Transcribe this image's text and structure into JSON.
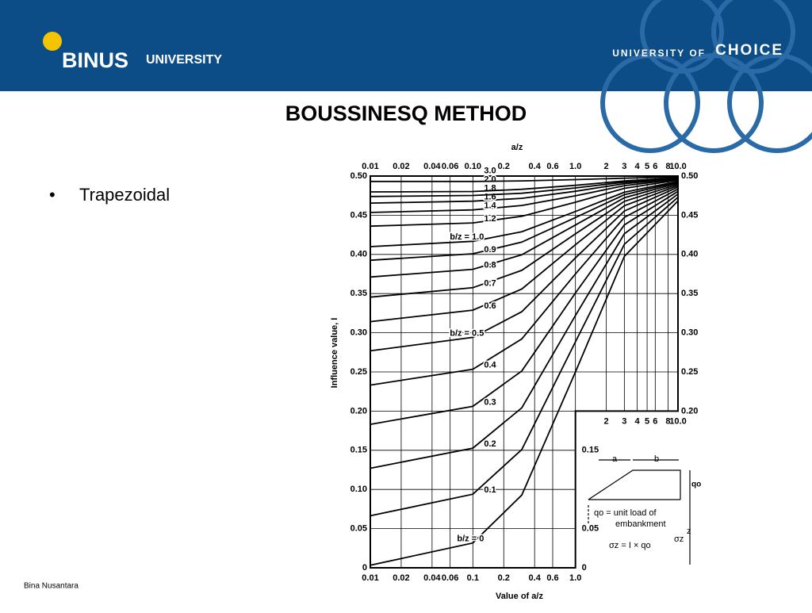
{
  "header": {
    "logo_name": "BINUS",
    "logo_suffix": "UNIVERSITY",
    "tagline_prefix": "UNIVERSITY OF",
    "tagline": "CHOICE"
  },
  "title": "BOUSSINESQ METHOD",
  "bullets": [
    "Trapezoidal"
  ],
  "footer": "Bina Nusantara",
  "inset": {
    "a": "a",
    "b": "b",
    "q": "qo",
    "load_line1": "qo = unit load of",
    "load_line2": "embankment",
    "formula": "σz = I × qo",
    "z": "z",
    "sigma": "σz"
  },
  "chart_data": {
    "type": "line",
    "x_top_label": "a/z",
    "xlabel": "Value of a/z",
    "ylabel": "Influence value, I",
    "xscale": "log",
    "xlim": [
      0.01,
      10
    ],
    "ylim": [
      0,
      0.5
    ],
    "line_color": "#000000",
    "grid": true,
    "xticks": [
      0.01,
      0.02,
      0.04,
      0.06,
      {
        "value": 0.1,
        "label": "0.10"
      },
      0.2,
      0.4,
      0.6,
      {
        "value": 1,
        "label": "1.0"
      },
      2,
      3,
      4,
      5,
      6,
      8,
      {
        "value": 10,
        "label": "10.0"
      }
    ],
    "xticks_bottom": [
      0.01,
      0.02,
      0.04,
      0.06,
      0.1,
      0.2,
      0.4,
      0.6,
      {
        "value": 1,
        "label": "1.0"
      }
    ],
    "xticks_inner": [
      2,
      3,
      4,
      5,
      6,
      8,
      {
        "value": 10,
        "label": "10.0"
      }
    ],
    "yticks": [
      0,
      0.05,
      {
        "value": 0.1,
        "label": "0.10"
      },
      0.15,
      {
        "value": 0.2,
        "label": "0.20"
      },
      0.25,
      {
        "value": 0.3,
        "label": "0.30"
      },
      0.35,
      {
        "value": 0.4,
        "label": "0.40"
      },
      0.45,
      {
        "value": 0.5,
        "label": "0.50"
      }
    ],
    "yticks_right": [
      {
        "value": 0.2,
        "label": "0.20"
      },
      0.25,
      {
        "value": 0.3,
        "label": "0.30"
      },
      0.35,
      {
        "value": 0.4,
        "label": "0.40"
      },
      0.45,
      {
        "value": 0.5,
        "label": "0.50"
      }
    ],
    "yticks_right_lower": [
      0.15,
      0.05,
      0
    ],
    "x": [
      0.01,
      0.1,
      0.3,
      1,
      3,
      10
    ],
    "series": [
      {
        "name": "b/z = 0",
        "values": [
          0.0032,
          0.0317,
          0.0928,
          0.25,
          0.3976,
          0.4683
        ]
      },
      {
        "name": "0.1",
        "values": [
          0.0664,
          0.0939,
          0.1509,
          0.2885,
          0.413,
          0.473
        ]
      },
      {
        "name": "0.2",
        "values": [
          0.127,
          0.1527,
          0.2041,
          0.3221,
          0.4263,
          0.477
        ]
      },
      {
        "name": "0.3",
        "values": [
          0.1831,
          0.2061,
          0.2512,
          0.3508,
          0.4377,
          0.4805
        ]
      },
      {
        "name": "0.4",
        "values": [
          0.2332,
          0.2534,
          0.2921,
          0.3751,
          0.4473,
          0.4834
        ]
      },
      {
        "name": "b/z = 0.5",
        "values": [
          0.2769,
          0.2941,
          0.3268,
          0.3955,
          0.4554,
          0.4859
        ]
      },
      {
        "name": "0.6",
        "values": [
          0.3142,
          0.3288,
          0.3558,
          0.4123,
          0.4621,
          0.4879
        ]
      },
      {
        "name": "0.7",
        "values": [
          0.3454,
          0.3575,
          0.3797,
          0.4262,
          0.4677,
          0.4896
        ]
      },
      {
        "name": "0.8",
        "values": [
          0.3712,
          0.381,
          0.3995,
          0.4376,
          0.4723,
          0.4911
        ]
      },
      {
        "name": "0.9",
        "values": [
          0.3925,
          0.4008,
          0.4157,
          0.4471,
          0.4762,
          0.4923
        ]
      },
      {
        "name": "b/z = 1.0",
        "values": [
          0.4099,
          0.4167,
          0.4289,
          0.4548,
          0.4794,
          0.4932
        ]
      },
      {
        "name": "1.2",
        "values": [
          0.436,
          0.4402,
          0.4487,
          0.4666,
          0.4843,
          0.4948
        ]
      },
      {
        "name": "1.4",
        "values": [
          0.4535,
          0.4568,
          0.4624,
          0.4748,
          0.4878,
          0.4959
        ]
      },
      {
        "name": "1.6",
        "values": [
          0.4655,
          0.4679,
          0.4716,
          0.4806,
          0.4903,
          0.4967
        ]
      },
      {
        "name": "1.8",
        "values": [
          0.4739,
          0.4752,
          0.478,
          0.4848,
          0.4922,
          0.4973
        ]
      },
      {
        "name": "2.0",
        "values": [
          0.4798,
          0.4803,
          0.4831,
          0.4882,
          0.4937,
          0.4978
        ]
      },
      {
        "name": "3.0",
        "values": [
          0.4931,
          0.4931,
          0.4938,
          0.4954,
          0.4973,
          0.499
        ]
      }
    ]
  }
}
